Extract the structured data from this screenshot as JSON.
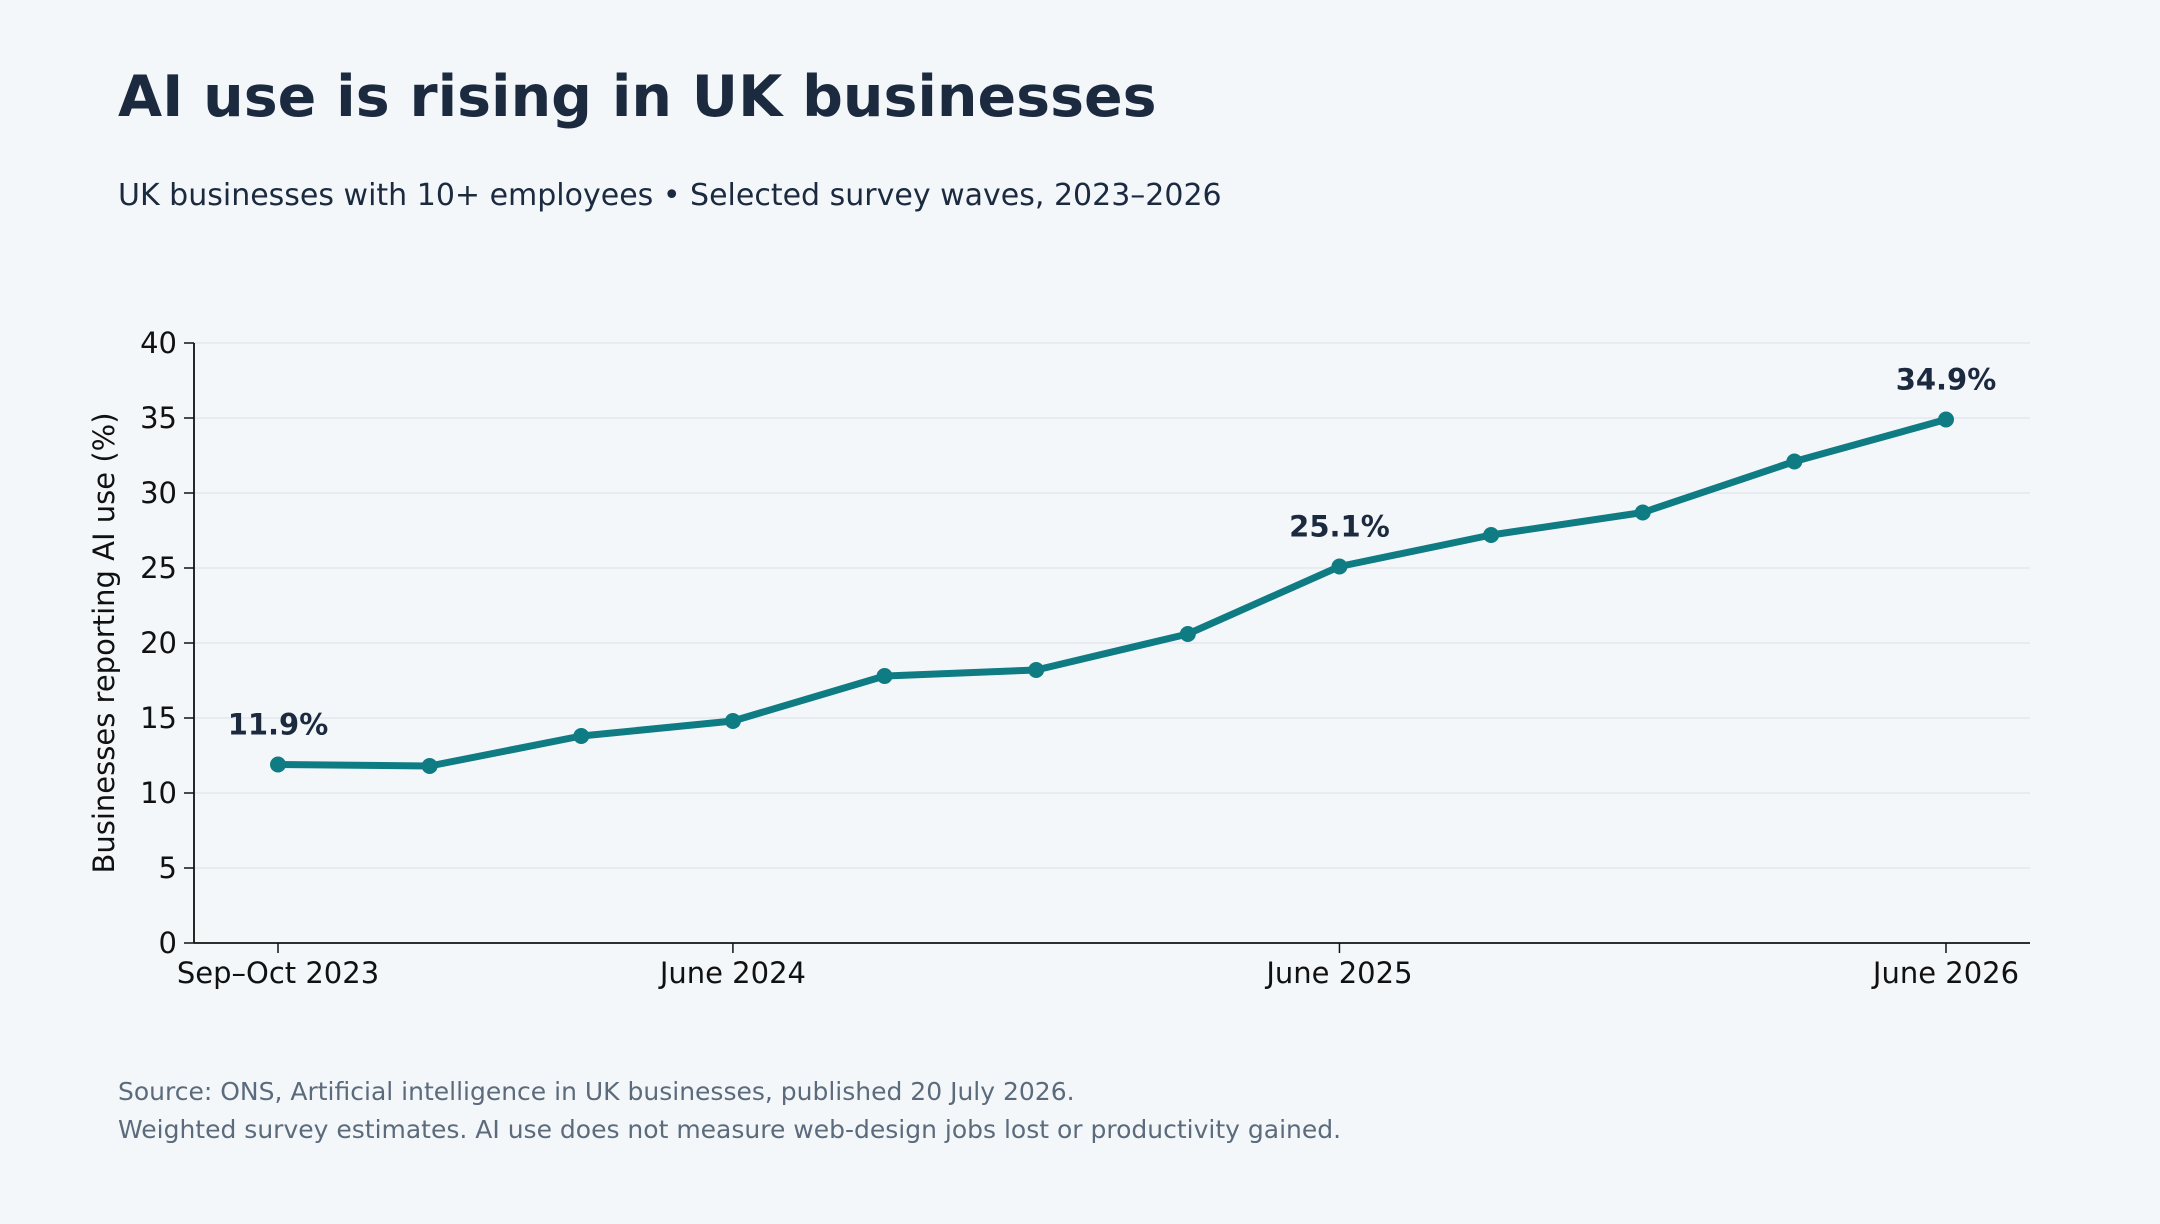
{
  "title": "AI use is rising in UK businesses",
  "subtitle": "UK businesses with 10+ employees • Selected survey waves, 2023–2026",
  "footnotes": {
    "source": "Source: ONS, Artificial intelligence in UK businesses, published 20 July 2026.",
    "method": "Weighted survey estimates. AI use does not measure web-design jobs lost or productivity gained."
  },
  "colors": {
    "series": "#0f7b83",
    "text": "#1b2a3f",
    "grid": "#e4e9ee",
    "background": "#f3f7fa"
  },
  "chart_data": {
    "type": "line",
    "title": "AI use is rising in UK businesses",
    "xlabel": "",
    "ylabel": "Businesses reporting AI use (%)",
    "ylim": [
      0,
      40
    ],
    "yticks": [
      0,
      5,
      10,
      15,
      20,
      25,
      30,
      35,
      40
    ],
    "grid": "horizontal",
    "legend": "none",
    "xticks": [
      {
        "label": "Sep–Oct 2023",
        "index": 0
      },
      {
        "label": "June 2024",
        "index": 3
      },
      {
        "label": "June 2025",
        "index": 7
      },
      {
        "label": "June 2026",
        "index": 11
      }
    ],
    "series": [
      {
        "values": [
          11.9,
          11.8,
          13.8,
          14.8,
          17.8,
          18.2,
          20.6,
          25.1,
          27.2,
          28.7,
          32.1,
          34.9
        ]
      }
    ],
    "annotations": [
      {
        "index": 0,
        "text": "11.9%"
      },
      {
        "index": 7,
        "text": "25.1%"
      },
      {
        "index": 11,
        "text": "34.9%"
      }
    ]
  }
}
